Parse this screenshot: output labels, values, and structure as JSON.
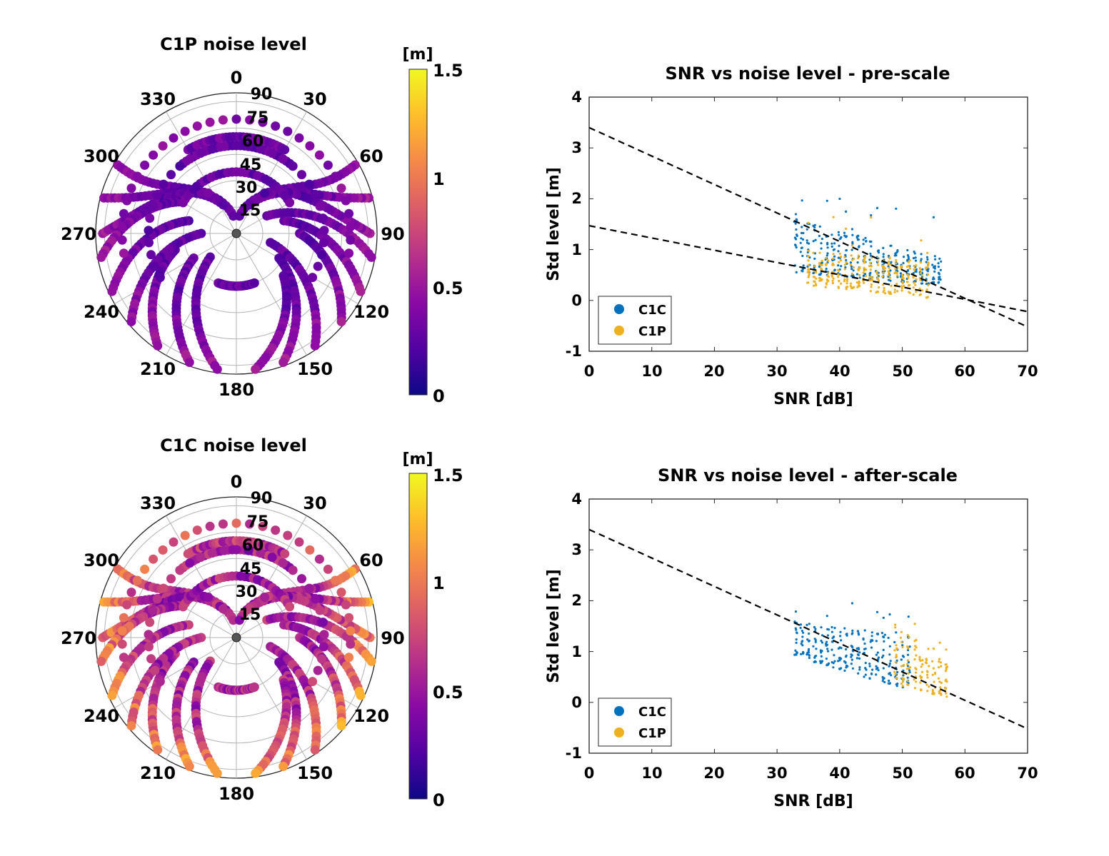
{
  "colors": {
    "c1c": "#0072BD",
    "c1p": "#EDB120",
    "fit": "#000000",
    "grid": "#b3b3b3",
    "colormap": [
      "#0d0887",
      "#5302a3",
      "#8b0aa5",
      "#b83289",
      "#db5c68",
      "#f48849",
      "#febd2a",
      "#f0f921"
    ]
  },
  "polar_plots": [
    {
      "title": "C1P noise level",
      "colorbar": {
        "unit": "[m]",
        "ticks": [
          "0",
          "0.5",
          "1",
          "1.5"
        ],
        "range": [
          0,
          1.5
        ],
        "colormap": "plasma"
      },
      "azimuth_ticks": [
        "0",
        "30",
        "60",
        "90",
        "120",
        "150",
        "180",
        "210",
        "240",
        "270",
        "300",
        "330"
      ],
      "elevation_ticks": [
        "15",
        "30",
        "45",
        "60",
        "75",
        "90"
      ],
      "elevation_cutoff_deg": 10,
      "level_bias": 0.28,
      "level_spread": 0.25
    },
    {
      "title": "C1C noise level",
      "colorbar": {
        "unit": "[m]",
        "ticks": [
          "0",
          "0.5",
          "1",
          "1.5"
        ],
        "range": [
          0,
          1.5
        ],
        "colormap": "plasma"
      },
      "azimuth_ticks": [
        "0",
        "30",
        "60",
        "90",
        "120",
        "150",
        "180",
        "210",
        "240",
        "270",
        "300",
        "330"
      ],
      "elevation_ticks": [
        "15",
        "30",
        "45",
        "60",
        "75",
        "90"
      ],
      "elevation_cutoff_deg": 10,
      "level_bias": 0.55,
      "level_spread": 0.55
    }
  ],
  "chart_data": [
    {
      "type": "scatter",
      "title": "SNR vs noise level - pre-scale",
      "xlabel": "SNR [dB]",
      "ylabel": "Std level [m]",
      "xlim": [
        0,
        70
      ],
      "ylim": [
        -1,
        4
      ],
      "xticks": [
        "0",
        "10",
        "20",
        "30",
        "40",
        "50",
        "60",
        "70"
      ],
      "yticks": [
        "-1",
        "0",
        "1",
        "2",
        "3",
        "4"
      ],
      "legend_position": "bottom-left",
      "series": [
        {
          "name": "C1C",
          "snr_range": [
            33,
            56
          ],
          "std_min": [
            0.55,
            0.3
          ],
          "std_max": [
            1.6,
            0.85
          ],
          "peak": 2.1
        },
        {
          "name": "C1P",
          "snr_range": [
            35,
            54
          ],
          "std_min": [
            0.3,
            0.05
          ],
          "std_max": [
            1.0,
            0.75
          ],
          "peak": 1.65
        }
      ],
      "fit_lines": [
        {
          "x": [
            0,
            70
          ],
          "y": [
            3.4,
            -0.52
          ]
        },
        {
          "x": [
            0,
            70
          ],
          "y": [
            1.47,
            -0.22
          ]
        }
      ]
    },
    {
      "type": "scatter",
      "title": "SNR vs noise level - after-scale",
      "xlabel": "SNR [dB]",
      "ylabel": "Std level [m]",
      "xlim": [
        0,
        70
      ],
      "ylim": [
        -1,
        4
      ],
      "xticks": [
        "0",
        "10",
        "20",
        "30",
        "40",
        "50",
        "60",
        "70"
      ],
      "yticks": [
        "-1",
        "0",
        "1",
        "2",
        "3",
        "4"
      ],
      "legend_position": "bottom-left",
      "series": [
        {
          "name": "C1C",
          "snr_range": [
            33,
            51
          ],
          "std_min": [
            0.9,
            0.25
          ],
          "std_max": [
            1.6,
            1.3
          ],
          "peak": 2.1
        },
        {
          "name": "C1P",
          "snr_range": [
            49,
            57
          ],
          "std_min": [
            0.35,
            0.1
          ],
          "std_max": [
            1.6,
            0.75
          ],
          "peak": 1.65
        }
      ],
      "fit_lines": [
        {
          "x": [
            0,
            70
          ],
          "y": [
            3.4,
            -0.52
          ]
        }
      ]
    }
  ]
}
